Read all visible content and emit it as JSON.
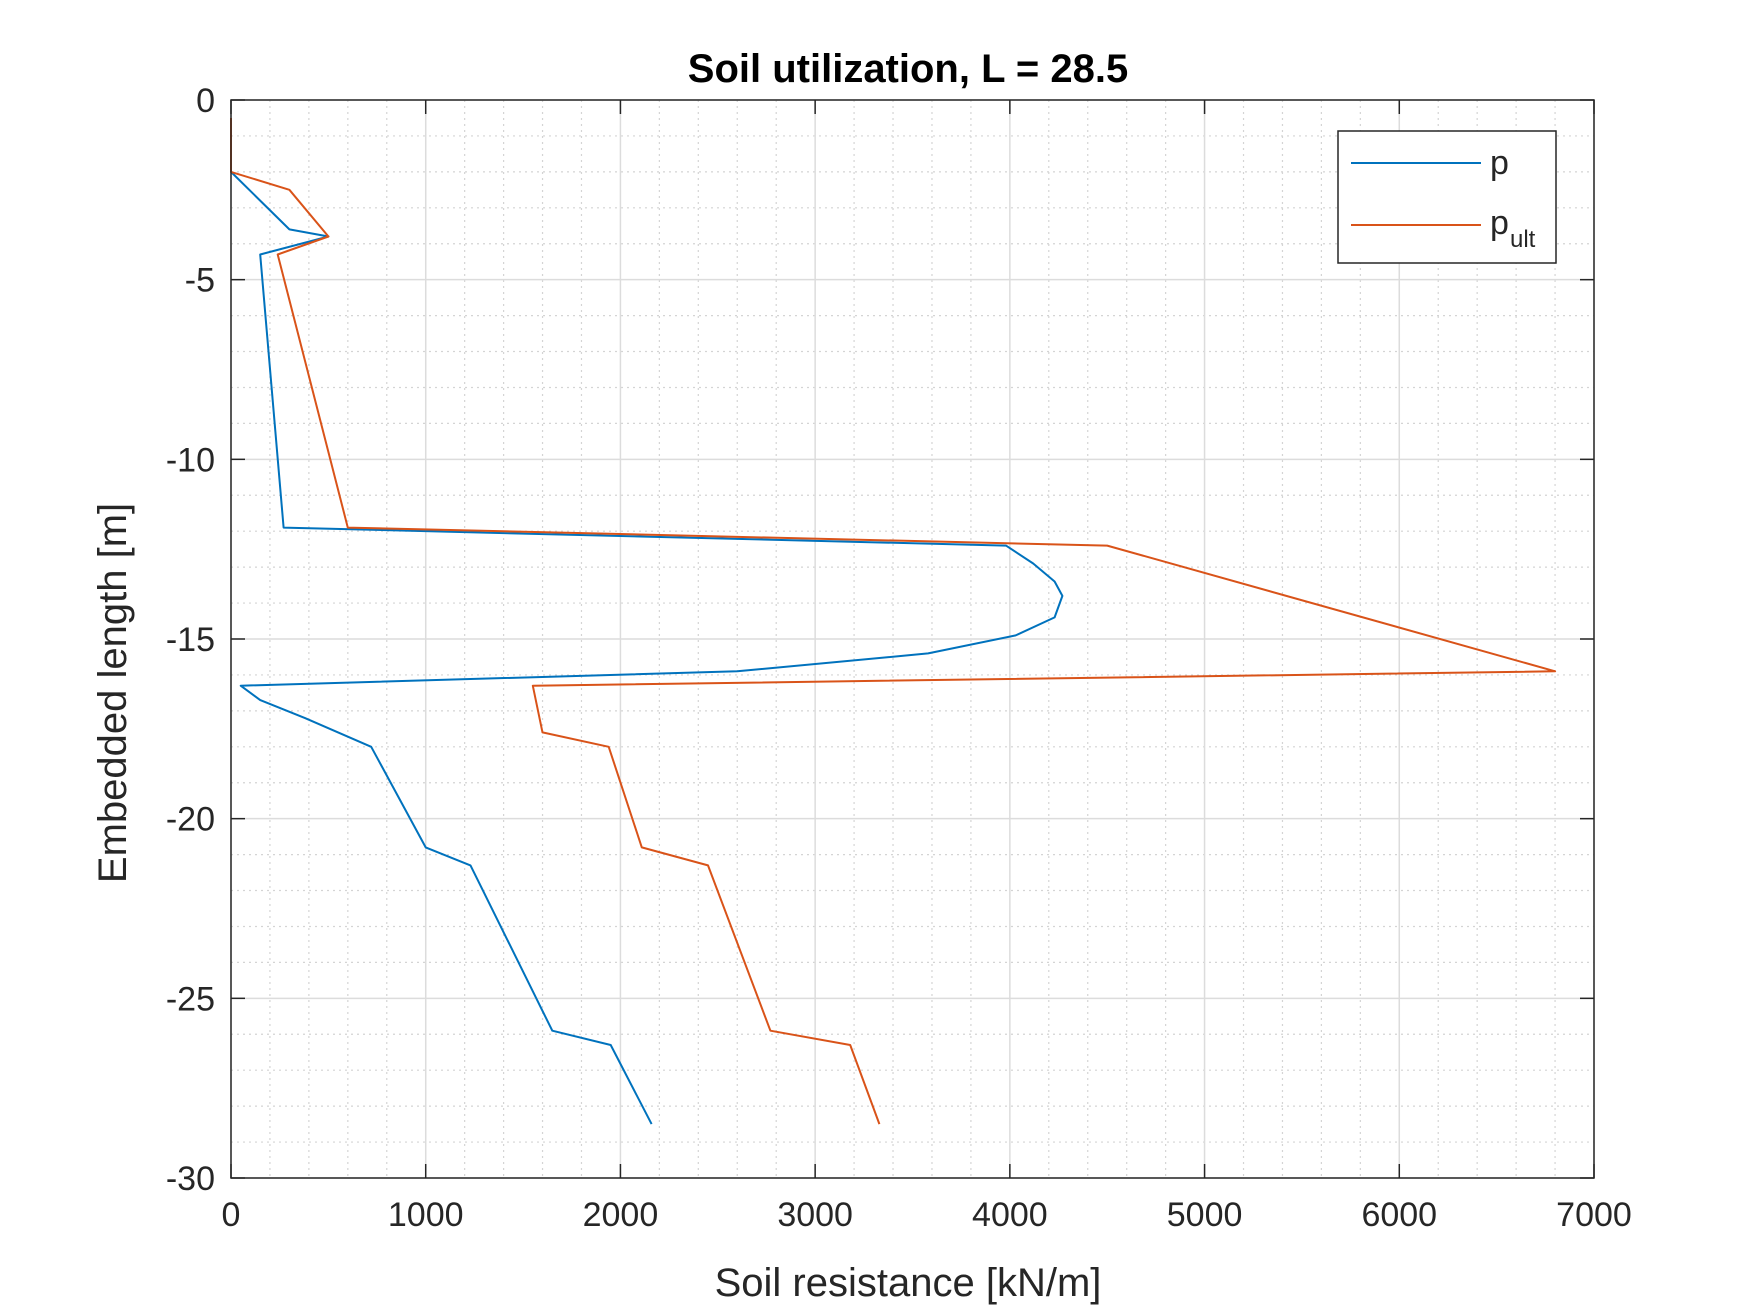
{
  "chart_data": {
    "type": "line",
    "title": "Soil utilization, L = 28.5",
    "xlabel": "Soil resistance [kN/m]",
    "ylabel": "Embedded length [m]",
    "xlim": [
      0,
      7000
    ],
    "ylim": [
      -30,
      0
    ],
    "xticks": [
      0,
      1000,
      2000,
      3000,
      4000,
      5000,
      6000,
      7000
    ],
    "yticks": [
      0,
      -5,
      -10,
      -15,
      -20,
      -25,
      -30
    ],
    "xtick_labels": [
      "0",
      "1000",
      "2000",
      "3000",
      "4000",
      "5000",
      "6000",
      "7000"
    ],
    "ytick_labels": [
      "0",
      "-5",
      "-10",
      "-15",
      "-20",
      "-25",
      "-30"
    ],
    "grid": true,
    "minor_grid": true,
    "legend_position": "top-right",
    "series": [
      {
        "name": "p",
        "color": "#0072BD",
        "points": [
          [
            0,
            -0.5
          ],
          [
            0,
            -2.0
          ],
          [
            300,
            -3.6
          ],
          [
            500,
            -3.8
          ],
          [
            150,
            -4.3
          ],
          [
            270,
            -11.9
          ],
          [
            3980,
            -12.4
          ],
          [
            4120,
            -12.9
          ],
          [
            4230,
            -13.4
          ],
          [
            4270,
            -13.8
          ],
          [
            4230,
            -14.4
          ],
          [
            4030,
            -14.9
          ],
          [
            3580,
            -15.4
          ],
          [
            2600,
            -15.9
          ],
          [
            50,
            -16.3
          ],
          [
            150,
            -16.7
          ],
          [
            380,
            -17.2
          ],
          [
            720,
            -18.0
          ],
          [
            1000,
            -20.8
          ],
          [
            1230,
            -21.3
          ],
          [
            1650,
            -25.9
          ],
          [
            1950,
            -26.3
          ],
          [
            2160,
            -28.5
          ]
        ]
      },
      {
        "name": "p",
        "name_subscript": "ult",
        "color": "#D95319",
        "points": [
          [
            0,
            -0.5
          ],
          [
            0,
            -2.0
          ],
          [
            300,
            -2.5
          ],
          [
            500,
            -3.8
          ],
          [
            240,
            -4.3
          ],
          [
            600,
            -11.9
          ],
          [
            4500,
            -12.4
          ],
          [
            6800,
            -15.9
          ],
          [
            1550,
            -16.3
          ],
          [
            1600,
            -17.6
          ],
          [
            1940,
            -18.0
          ],
          [
            2110,
            -20.8
          ],
          [
            2450,
            -21.3
          ],
          [
            2770,
            -25.9
          ],
          [
            3180,
            -26.3
          ],
          [
            3330,
            -28.5
          ]
        ]
      }
    ]
  }
}
